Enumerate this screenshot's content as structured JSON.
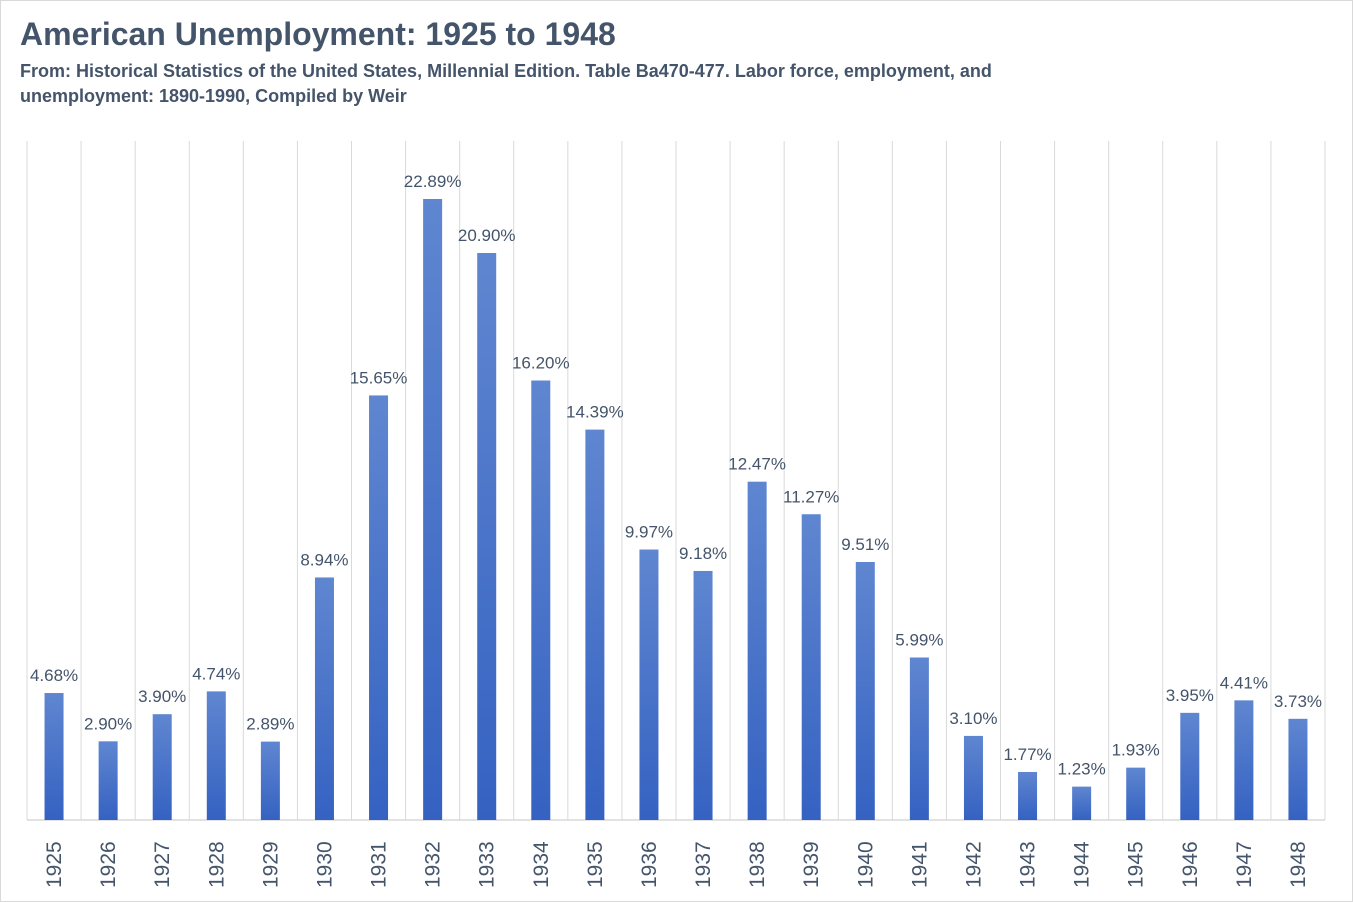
{
  "chart_data": {
    "type": "bar",
    "title": "American Unemployment: 1925 to 1948",
    "subtitle": "From: Historical Statistics of the United States, Millennial Edition. Table Ba470-477.  Labor force, employment, and unemployment: 1890-1990, Compiled by Weir",
    "xlabel": "",
    "ylabel": "",
    "categories": [
      "1925",
      "1926",
      "1927",
      "1928",
      "1929",
      "1930",
      "1931",
      "1932",
      "1933",
      "1934",
      "1935",
      "1936",
      "1937",
      "1938",
      "1939",
      "1940",
      "1941",
      "1942",
      "1943",
      "1944",
      "1945",
      "1946",
      "1947",
      "1948"
    ],
    "values": [
      4.68,
      2.9,
      3.9,
      4.74,
      2.89,
      8.94,
      15.65,
      22.89,
      20.9,
      16.2,
      14.39,
      9.97,
      9.18,
      12.47,
      11.27,
      9.51,
      5.99,
      3.1,
      1.77,
      1.23,
      1.93,
      3.95,
      4.41,
      3.73
    ],
    "data_labels": [
      "4.68%",
      "2.90%",
      "3.90%",
      "4.74%",
      "2.89%",
      "8.94%",
      "15.65%",
      "22.89%",
      "20.90%",
      "16.20%",
      "14.39%",
      "9.97%",
      "9.18%",
      "12.47%",
      "11.27%",
      "9.51%",
      "5.99%",
      "3.10%",
      "1.77%",
      "1.23%",
      "1.93%",
      "3.95%",
      "4.41%",
      "3.73%"
    ],
    "ylim": [
      0,
      25
    ],
    "grid": "vertical",
    "legend": "none",
    "colors": {
      "bar_top": "#5f86d0",
      "bar_bottom": "#3562c2",
      "text": "#44546a",
      "grid": "#d9d9d9"
    }
  }
}
